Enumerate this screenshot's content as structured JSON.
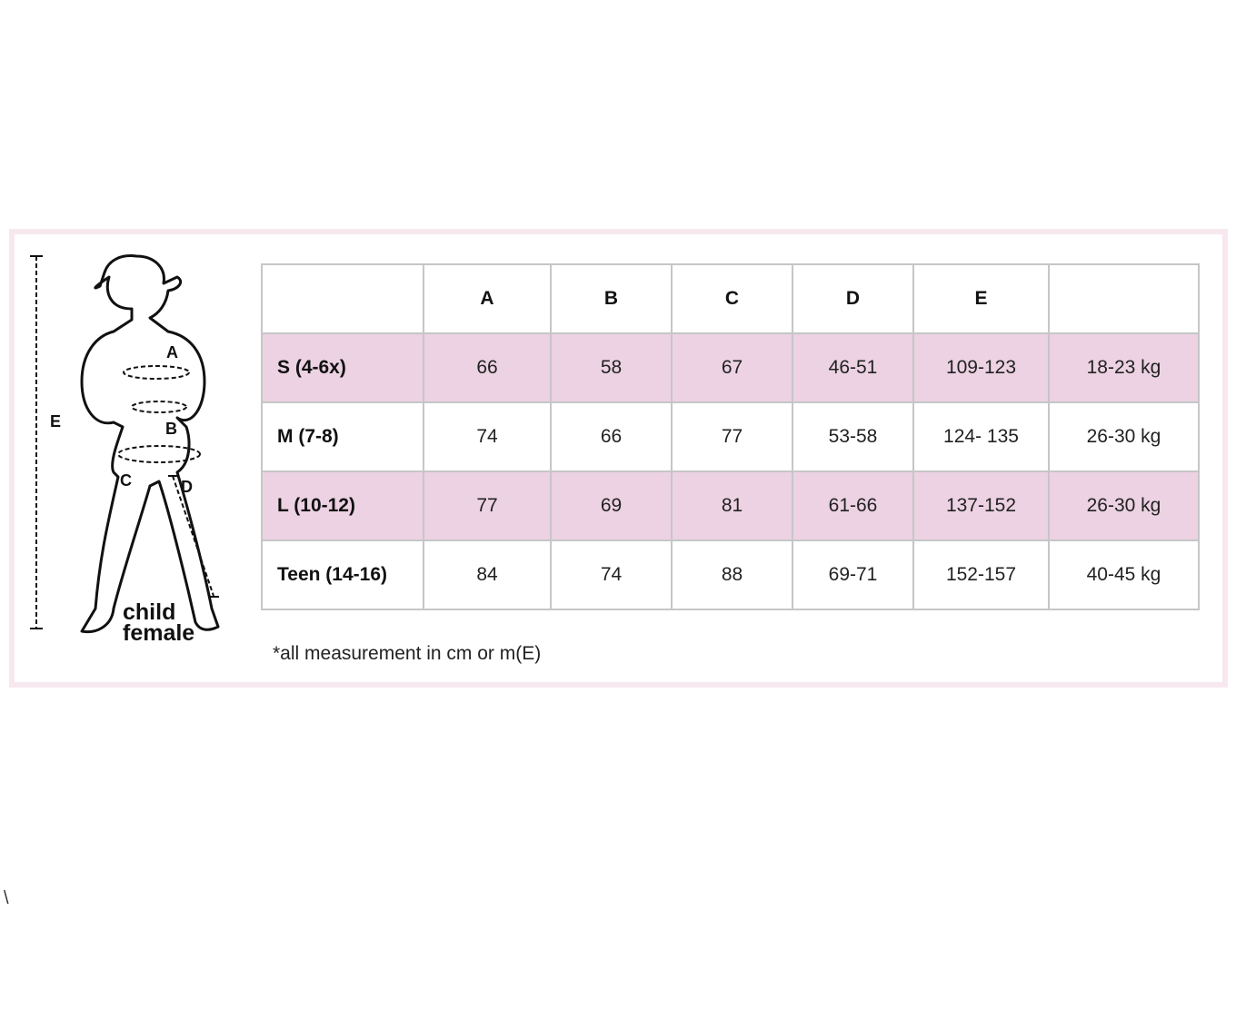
{
  "figure": {
    "labels": [
      "A",
      "B",
      "C",
      "D",
      "E"
    ],
    "caption_line1": "child",
    "caption_line2": "female"
  },
  "table": {
    "headers": [
      "",
      "A",
      "B",
      "C",
      "D",
      "E",
      ""
    ],
    "rows": [
      [
        "S (4-6x)",
        "66",
        "58",
        "67",
        "46-51",
        "109-123",
        "18-23 kg"
      ],
      [
        "M (7-8)",
        "74",
        "66",
        "77",
        "53-58",
        "124- 135",
        "26-30 kg"
      ],
      [
        "L (10-12)",
        "77",
        "69",
        "81",
        "61-66",
        "137-152",
        "26-30 kg"
      ],
      [
        "Teen (14-16)",
        "84",
        "74",
        "88",
        "69-71",
        "152-157",
        "40-45 kg"
      ]
    ]
  },
  "note": "*all measurement in cm or m(E)",
  "stray_char": "\\",
  "colors": {
    "row_highlight": "#ecd2e2",
    "frame": "#f7e8ef",
    "grid": "#c6c6c6"
  }
}
